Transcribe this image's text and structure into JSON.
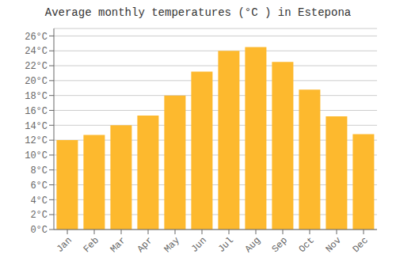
{
  "chart_data": {
    "type": "bar",
    "title": "Average monthly temperatures (°C ) in Estepona",
    "categories": [
      "Jan",
      "Feb",
      "Mar",
      "Apr",
      "May",
      "Jun",
      "Jul",
      "Aug",
      "Sep",
      "Oct",
      "Nov",
      "Dec"
    ],
    "values": [
      12.0,
      12.7,
      14.0,
      15.3,
      18.0,
      21.2,
      24.0,
      24.5,
      22.5,
      18.8,
      15.2,
      12.8
    ],
    "color": "#FDB92E",
    "ylim": [
      0,
      27
    ],
    "yticks": [
      {
        "value": 0,
        "label": "0°C"
      },
      {
        "value": 2,
        "label": "2°C"
      },
      {
        "value": 4,
        "label": "4°C"
      },
      {
        "value": 6,
        "label": "6°C"
      },
      {
        "value": 8,
        "label": "8°C"
      },
      {
        "value": 10,
        "label": "10°C"
      },
      {
        "value": 12,
        "label": "12°C"
      },
      {
        "value": 14,
        "label": "14°C"
      },
      {
        "value": 16,
        "label": "16°C"
      },
      {
        "value": 18,
        "label": "18°C"
      },
      {
        "value": 20,
        "label": "20°C"
      },
      {
        "value": 22,
        "label": "22°C"
      },
      {
        "value": 24,
        "label": "24°C"
      },
      {
        "value": 26,
        "label": "26°C"
      }
    ],
    "grid": true
  }
}
